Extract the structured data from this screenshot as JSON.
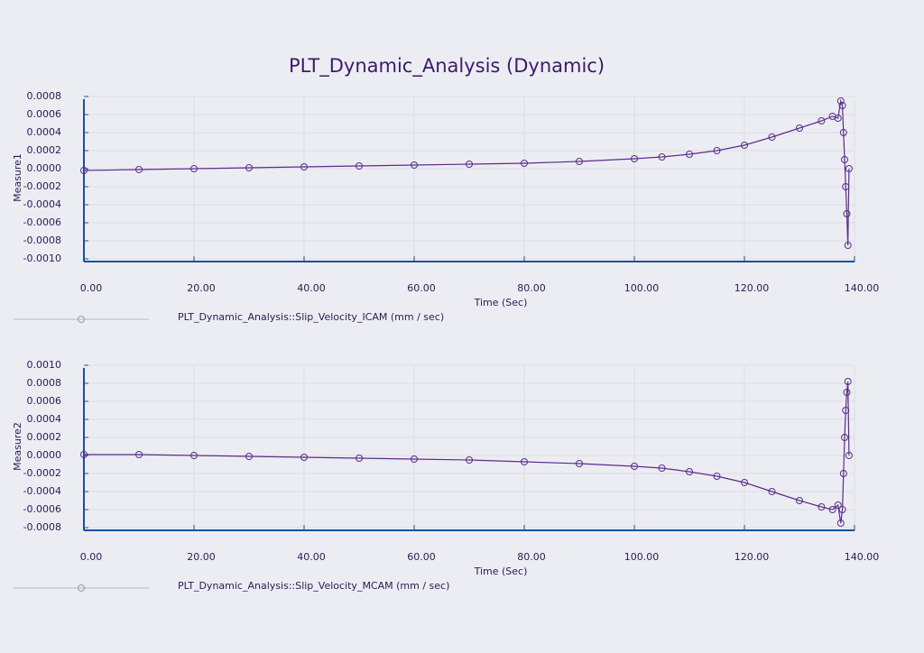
{
  "title": "PLT_Dynamic_Analysis (Dynamic)",
  "chart_data": [
    {
      "type": "line",
      "ylabel": "Measure1",
      "xlabel": "Time (Sec)",
      "x": [
        0,
        10,
        20,
        30,
        40,
        50,
        60,
        70,
        80,
        90,
        100,
        105,
        110,
        115,
        120,
        125,
        130,
        134,
        136,
        137,
        137.5,
        137.8,
        138,
        138.2,
        138.4,
        138.6,
        138.8,
        139
      ],
      "series": [
        {
          "name": "PLT_Dynamic_Analysis::Slip_Velocity_ICAM (mm / sec)",
          "color": "#5b2d8c",
          "values": [
            -2e-05,
            -1e-05,
            0.0,
            1e-05,
            2e-05,
            3e-05,
            4e-05,
            5e-05,
            6e-05,
            8e-05,
            0.00011,
            0.00013,
            0.00016,
            0.0002,
            0.00026,
            0.00035,
            0.00045,
            0.00053,
            0.00058,
            0.00056,
            0.00075,
            0.0007,
            0.0004,
            0.0001,
            -0.0002,
            -0.0005,
            -0.00085,
            0.0
          ]
        }
      ],
      "xlim": [
        0,
        140
      ],
      "xticks": [
        {
          "value": 0,
          "label": "0.00"
        },
        {
          "value": 20,
          "label": "20.00"
        },
        {
          "value": 40,
          "label": "40.00"
        },
        {
          "value": 60,
          "label": "60.00"
        },
        {
          "value": 80,
          "label": "80.00"
        },
        {
          "value": 100,
          "label": "100.00"
        },
        {
          "value": 120,
          "label": "120.00"
        },
        {
          "value": 140,
          "label": "140.00"
        }
      ],
      "ylim": [
        -0.001,
        0.0008
      ],
      "yticks": [
        0.0008,
        0.0006,
        0.0004,
        0.0002,
        {
          "value": 0,
          "label": "0.0000"
        },
        -0.0002,
        -0.0004,
        -0.0006,
        -0.0008,
        {
          "value": -0.001,
          "label": "-0.0010"
        }
      ],
      "grid": true
    },
    {
      "type": "line",
      "ylabel": "Measure2",
      "xlabel": "Time (Sec)",
      "x": [
        0,
        10,
        20,
        30,
        40,
        50,
        60,
        70,
        80,
        90,
        100,
        105,
        110,
        115,
        120,
        125,
        130,
        134,
        136,
        137,
        137.5,
        137.8,
        138,
        138.2,
        138.4,
        138.6,
        138.8,
        139
      ],
      "series": [
        {
          "name": "PLT_Dynamic_Analysis::Slip_Velocity_MCAM (mm / sec)",
          "color": "#5b2d8c",
          "values": [
            1e-05,
            1e-05,
            0.0,
            -1e-05,
            -2e-05,
            -3e-05,
            -4e-05,
            -5e-05,
            -7e-05,
            -9e-05,
            -0.00012,
            -0.00014,
            -0.00018,
            -0.00023,
            -0.0003,
            -0.0004,
            -0.0005,
            -0.00057,
            -0.0006,
            -0.00055,
            -0.00075,
            -0.0006,
            -0.0002,
            0.0002,
            0.0005,
            0.0007,
            0.00082,
            0.0
          ]
        }
      ],
      "xlim": [
        0,
        140
      ],
      "xticks": [
        {
          "value": 0,
          "label": "0.00"
        },
        {
          "value": 20,
          "label": "20.00"
        },
        {
          "value": 40,
          "label": "40.00"
        },
        {
          "value": 60,
          "label": "60.00"
        },
        {
          "value": 80,
          "label": "80.00"
        },
        {
          "value": 100,
          "label": "100.00"
        },
        {
          "value": 120,
          "label": "120.00"
        },
        {
          "value": 140,
          "label": "140.00"
        }
      ],
      "ylim": [
        -0.0008,
        0.001
      ],
      "yticks": [
        {
          "value": 0.001,
          "label": "0.0010"
        },
        0.0008,
        0.0006,
        0.0004,
        0.0002,
        {
          "value": 0,
          "label": "0.0000"
        },
        -0.0002,
        -0.0004,
        -0.0006,
        -0.0008
      ],
      "grid": true
    }
  ]
}
